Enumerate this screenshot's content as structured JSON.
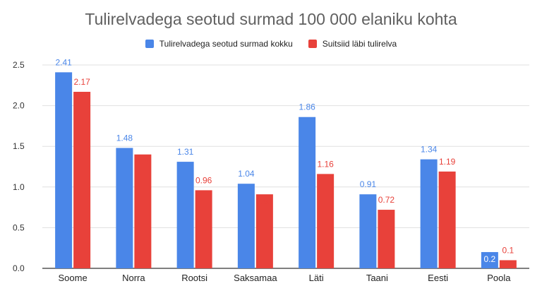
{
  "colors": {
    "series1": "#4a86e8",
    "series2": "#e8413a",
    "grid": "#e0e0e0",
    "axis": "#333333"
  },
  "chart_data": {
    "type": "bar",
    "title": "Tulirelvadega seotud surmad 100 000 elaniku kohta",
    "xlabel": "",
    "ylabel": "",
    "ylim": [
      0,
      2.5
    ],
    "yticks": [
      "0.0",
      "0.5",
      "1.0",
      "1.5",
      "2.0",
      "2.5"
    ],
    "grid": true,
    "legend_position": "top",
    "categories": [
      "Soome",
      "Norra",
      "Rootsi",
      "Saksamaa",
      "Läti",
      "Taani",
      "Eesti",
      "Poola"
    ],
    "series": [
      {
        "name": "Tulirelvadega seotud surmad kokku",
        "values": [
          2.41,
          1.48,
          1.31,
          1.04,
          1.86,
          0.91,
          1.34,
          0.2
        ]
      },
      {
        "name": "Suitsiid läbi tulirelva",
        "values": [
          2.17,
          1.4,
          0.96,
          0.91,
          1.16,
          0.72,
          1.19,
          0.1
        ]
      }
    ]
  }
}
